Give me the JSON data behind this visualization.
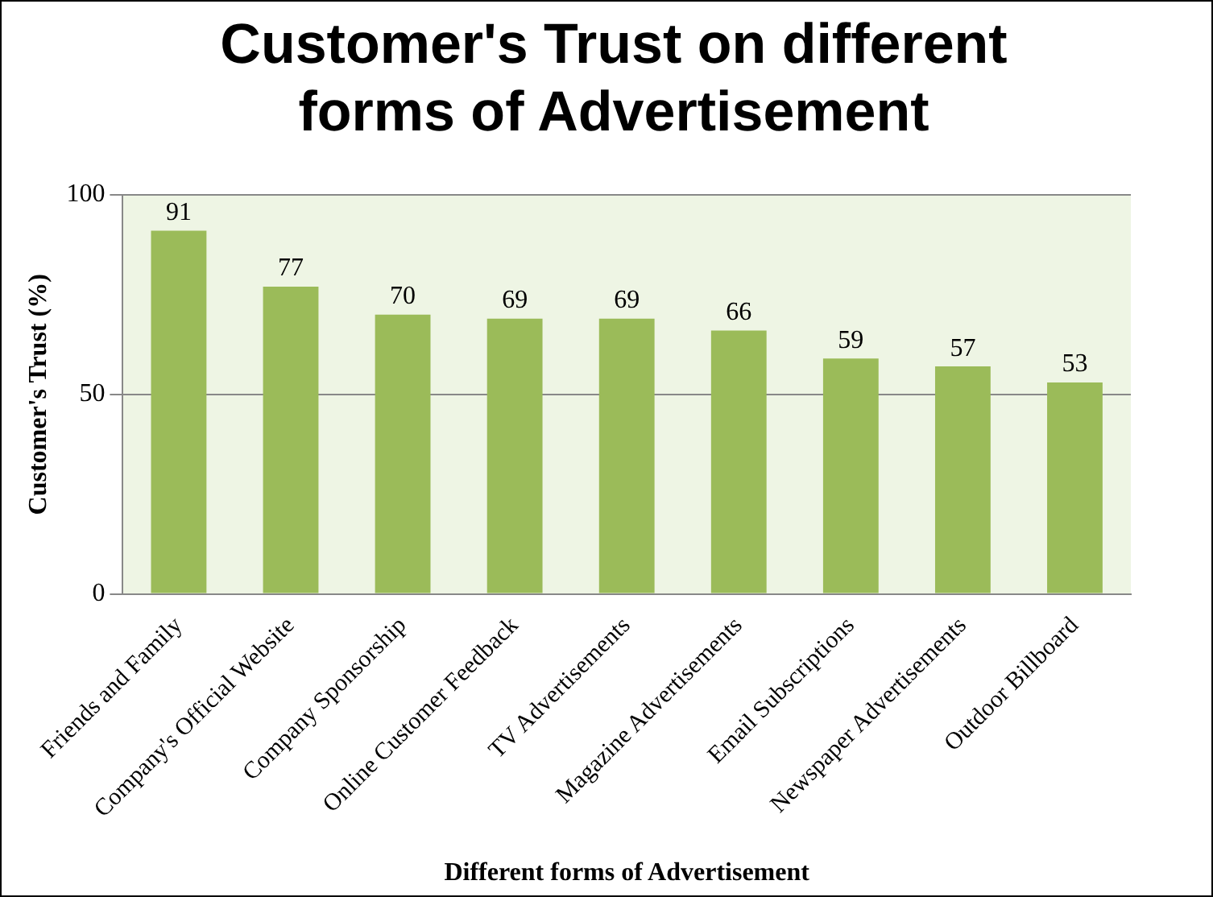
{
  "chart_data": {
    "type": "bar",
    "title": "Customer's Trust on different forms of Advertisement",
    "xlabel": "Different forms of Advertisement",
    "ylabel": "Customer's Trust (%)",
    "categories": [
      "Friends and Family",
      "Company's Official Website",
      "Company Sponsorship",
      "Online Customer Feedback",
      "TV Advertisements",
      "Magazine Advertisements",
      "Email Subscriptions",
      "Newspaper Advertisements",
      "Outdoor Billboard"
    ],
    "values": [
      91,
      77,
      70,
      69,
      69,
      66,
      59,
      57,
      53
    ],
    "color": "#9bbb59",
    "ylim": [
      0,
      100
    ],
    "yticks": [
      0,
      50,
      100
    ],
    "grid": "y",
    "data_labels": true
  }
}
